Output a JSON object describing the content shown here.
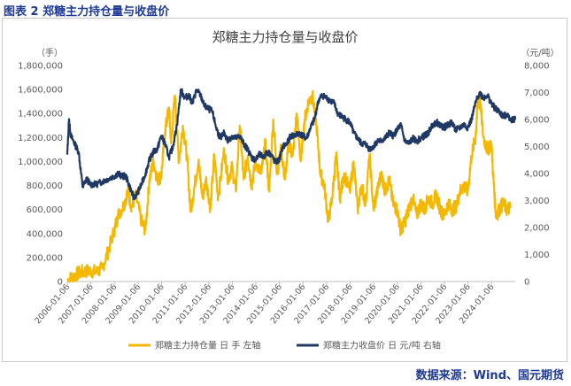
{
  "figure_label": "图表 2  郑糖主力持仓量与收盘价",
  "source_text": "数据来源：Wind、国元期货",
  "colors": {
    "volume": "#f5b800",
    "price": "#1f3864",
    "axis": "#bfbfbf"
  },
  "chart_data": {
    "type": "line",
    "title": "郑糖主力持仓量与收盘价",
    "left_unit": "（手）",
    "right_unit": "（元/吨）",
    "y_left": {
      "min": 0,
      "max": 1800000,
      "ticks": [
        "0",
        "200,000",
        "400,000",
        "600,000",
        "800,000",
        "1,000,000",
        "1,200,000",
        "1,400,000",
        "1,600,000",
        "1,800,000"
      ]
    },
    "y_right": {
      "min": 0,
      "max": 8000,
      "ticks": [
        "0",
        "1,000",
        "2,000",
        "3,000",
        "4,000",
        "5,000",
        "6,000",
        "7,000",
        "8,000"
      ]
    },
    "x_range": [
      "2006-01-06",
      "2025-01-06"
    ],
    "x_ticks": [
      "2006-01-06",
      "2007-01-06",
      "2008-01-06",
      "2009-01-06",
      "2010-01-06",
      "2011-01-06",
      "2012-01-06",
      "2013-01-06",
      "2014-01-06",
      "2015-01-06",
      "2016-01-06",
      "2017-01-06",
      "2018-01-06",
      "2019-01-06",
      "2020-01-06",
      "2021-01-06",
      "2022-01-06",
      "2023-01-06",
      "2024-01-06"
    ],
    "legend_position": "bottom",
    "series": [
      {
        "name": "郑糖主力持仓量 日 手  左轴",
        "axis": "left",
        "points": [
          [
            "2006-01-06",
            10000
          ],
          [
            "2006-04-01",
            40000
          ],
          [
            "2006-07-01",
            70000
          ],
          [
            "2006-10-01",
            85000
          ],
          [
            "2007-01-01",
            90000
          ],
          [
            "2007-04-01",
            80000
          ],
          [
            "2007-07-01",
            110000
          ],
          [
            "2007-10-01",
            250000
          ],
          [
            "2008-01-01",
            420000
          ],
          [
            "2008-03-01",
            550000
          ],
          [
            "2008-06-01",
            640000
          ],
          [
            "2008-08-01",
            750000
          ],
          [
            "2008-10-01",
            620000
          ],
          [
            "2008-12-01",
            720000
          ],
          [
            "2009-03-01",
            500000
          ],
          [
            "2009-05-01",
            430000
          ],
          [
            "2009-07-01",
            850000
          ],
          [
            "2009-09-01",
            1000000
          ],
          [
            "2009-11-01",
            850000
          ],
          [
            "2010-01-01",
            880000
          ],
          [
            "2010-03-01",
            1250000
          ],
          [
            "2010-05-01",
            1450000
          ],
          [
            "2010-06-01",
            1150000
          ],
          [
            "2010-08-01",
            1550000
          ],
          [
            "2010-10-01",
            1000000
          ],
          [
            "2010-12-01",
            1300000
          ],
          [
            "2011-02-01",
            1050000
          ],
          [
            "2011-04-01",
            580000
          ],
          [
            "2011-06-01",
            800000
          ],
          [
            "2011-08-01",
            1000000
          ],
          [
            "2011-10-01",
            700000
          ],
          [
            "2011-12-01",
            850000
          ],
          [
            "2012-02-01",
            600000
          ],
          [
            "2012-04-01",
            1050000
          ],
          [
            "2012-06-01",
            700000
          ],
          [
            "2012-09-01",
            1100000
          ],
          [
            "2012-11-01",
            850000
          ],
          [
            "2013-01-01",
            950000
          ],
          [
            "2013-03-01",
            750000
          ],
          [
            "2013-05-01",
            1300000
          ],
          [
            "2013-07-01",
            850000
          ],
          [
            "2013-09-01",
            1050000
          ],
          [
            "2013-11-01",
            800000
          ],
          [
            "2014-01-01",
            1000000
          ],
          [
            "2014-04-01",
            900000
          ],
          [
            "2014-06-01",
            1150000
          ],
          [
            "2014-08-01",
            750000
          ],
          [
            "2014-10-01",
            1350000
          ],
          [
            "2014-12-01",
            900000
          ],
          [
            "2015-02-01",
            1100000
          ],
          [
            "2015-04-01",
            850000
          ],
          [
            "2015-06-01",
            1150000
          ],
          [
            "2015-08-01",
            1050000
          ],
          [
            "2015-10-01",
            1400000
          ],
          [
            "2015-12-01",
            1000000
          ],
          [
            "2016-02-01",
            1350000
          ],
          [
            "2016-04-01",
            1500000
          ],
          [
            "2016-06-01",
            1550000
          ],
          [
            "2016-08-01",
            1300000
          ],
          [
            "2016-10-01",
            900000
          ],
          [
            "2016-12-01",
            800000
          ],
          [
            "2017-02-01",
            500000
          ],
          [
            "2017-04-01",
            700000
          ],
          [
            "2017-06-01",
            1050000
          ],
          [
            "2017-08-01",
            700000
          ],
          [
            "2017-10-01",
            900000
          ],
          [
            "2018-01-01",
            750000
          ],
          [
            "2018-03-01",
            1000000
          ],
          [
            "2018-05-01",
            600000
          ],
          [
            "2018-07-01",
            800000
          ],
          [
            "2018-09-01",
            650000
          ],
          [
            "2018-11-01",
            1050000
          ],
          [
            "2019-01-01",
            600000
          ],
          [
            "2019-03-01",
            750000
          ],
          [
            "2019-05-01",
            900000
          ],
          [
            "2019-07-01",
            750000
          ],
          [
            "2019-09-01",
            850000
          ],
          [
            "2019-11-01",
            650000
          ],
          [
            "2020-01-01",
            600000
          ],
          [
            "2020-03-01",
            420000
          ],
          [
            "2020-05-01",
            500000
          ],
          [
            "2020-07-01",
            600000
          ],
          [
            "2020-09-01",
            700000
          ],
          [
            "2020-11-01",
            550000
          ],
          [
            "2021-01-01",
            650000
          ],
          [
            "2021-03-01",
            600000
          ],
          [
            "2021-05-01",
            700000
          ],
          [
            "2021-07-01",
            650000
          ],
          [
            "2021-09-01",
            720000
          ],
          [
            "2021-11-01",
            600000
          ],
          [
            "2022-01-01",
            550000
          ],
          [
            "2022-03-01",
            650000
          ],
          [
            "2022-05-01",
            600000
          ],
          [
            "2022-07-01",
            620000
          ],
          [
            "2022-09-01",
            750000
          ],
          [
            "2022-11-01",
            800000
          ],
          [
            "2023-01-01",
            750000
          ],
          [
            "2023-03-01",
            1050000
          ],
          [
            "2023-05-01",
            1200000
          ],
          [
            "2023-06-01",
            1450000
          ],
          [
            "2023-07-01",
            1550000
          ],
          [
            "2023-09-01",
            1200000
          ],
          [
            "2023-11-01",
            1100000
          ],
          [
            "2024-01-01",
            1150000
          ],
          [
            "2024-02-15",
            750000
          ],
          [
            "2024-03-15",
            550000
          ],
          [
            "2024-05-01",
            600000
          ],
          [
            "2024-07-01",
            650000
          ],
          [
            "2024-09-01",
            600000
          ],
          [
            "2024-11-01",
            620000
          ]
        ]
      },
      {
        "name": "郑糖主力收盘价 日 元/吨  右轴",
        "axis": "right",
        "points": [
          [
            "2006-01-06",
            4700
          ],
          [
            "2006-02-01",
            6000
          ],
          [
            "2006-03-01",
            5400
          ],
          [
            "2006-05-01",
            5100
          ],
          [
            "2006-07-01",
            4800
          ],
          [
            "2006-09-01",
            3500
          ],
          [
            "2006-11-01",
            3800
          ],
          [
            "2007-01-01",
            3600
          ],
          [
            "2007-04-01",
            3600
          ],
          [
            "2007-07-01",
            3700
          ],
          [
            "2007-10-01",
            3800
          ],
          [
            "2008-01-01",
            3900
          ],
          [
            "2008-03-01",
            4000
          ],
          [
            "2008-05-01",
            3900
          ],
          [
            "2008-07-01",
            3900
          ],
          [
            "2008-09-01",
            3500
          ],
          [
            "2008-11-01",
            3100
          ],
          [
            "2009-01-01",
            3300
          ],
          [
            "2009-03-01",
            3600
          ],
          [
            "2009-05-01",
            4000
          ],
          [
            "2009-07-01",
            4500
          ],
          [
            "2009-09-01",
            4800
          ],
          [
            "2009-11-01",
            4900
          ],
          [
            "2010-01-01",
            5400
          ],
          [
            "2010-03-01",
            5100
          ],
          [
            "2010-05-01",
            4600
          ],
          [
            "2010-07-01",
            5000
          ],
          [
            "2010-09-01",
            5800
          ],
          [
            "2010-11-01",
            7100
          ],
          [
            "2011-01-01",
            6800
          ],
          [
            "2011-03-01",
            6900
          ],
          [
            "2011-05-01",
            6600
          ],
          [
            "2011-07-01",
            7100
          ],
          [
            "2011-09-01",
            6900
          ],
          [
            "2011-11-01",
            6500
          ],
          [
            "2012-01-01",
            6400
          ],
          [
            "2012-03-01",
            6300
          ],
          [
            "2012-05-01",
            5700
          ],
          [
            "2012-07-01",
            5300
          ],
          [
            "2012-09-01",
            5500
          ],
          [
            "2012-11-01",
            5200
          ],
          [
            "2013-01-01",
            5400
          ],
          [
            "2013-03-01",
            5300
          ],
          [
            "2013-05-01",
            5400
          ],
          [
            "2013-07-01",
            5100
          ],
          [
            "2013-09-01",
            4900
          ],
          [
            "2013-11-01",
            4600
          ],
          [
            "2014-01-01",
            4500
          ],
          [
            "2014-03-01",
            4700
          ],
          [
            "2014-05-01",
            4600
          ],
          [
            "2014-07-01",
            4800
          ],
          [
            "2014-09-01",
            4700
          ],
          [
            "2014-11-01",
            4400
          ],
          [
            "2015-01-01",
            4500
          ],
          [
            "2015-03-01",
            5000
          ],
          [
            "2015-05-01",
            5100
          ],
          [
            "2015-07-01",
            5400
          ],
          [
            "2015-09-01",
            5400
          ],
          [
            "2015-11-01",
            5500
          ],
          [
            "2016-01-01",
            5400
          ],
          [
            "2016-03-01",
            5300
          ],
          [
            "2016-05-01",
            5700
          ],
          [
            "2016-07-01",
            6000
          ],
          [
            "2016-09-01",
            6700
          ],
          [
            "2016-11-01",
            6900
          ],
          [
            "2017-01-01",
            6800
          ],
          [
            "2017-03-01",
            6700
          ],
          [
            "2017-05-01",
            6600
          ],
          [
            "2017-07-01",
            6200
          ],
          [
            "2017-09-01",
            6100
          ],
          [
            "2017-11-01",
            6000
          ],
          [
            "2018-01-01",
            5900
          ],
          [
            "2018-03-01",
            5500
          ],
          [
            "2018-05-01",
            5300
          ],
          [
            "2018-07-01",
            5100
          ],
          [
            "2018-09-01",
            5100
          ],
          [
            "2018-11-01",
            4900
          ],
          [
            "2019-01-01",
            5000
          ],
          [
            "2019-03-01",
            5200
          ],
          [
            "2019-05-01",
            5200
          ],
          [
            "2019-07-01",
            5300
          ],
          [
            "2019-09-01",
            5500
          ],
          [
            "2019-11-01",
            5400
          ],
          [
            "2020-01-01",
            5600
          ],
          [
            "2020-03-01",
            5800
          ],
          [
            "2020-05-01",
            5200
          ],
          [
            "2020-07-01",
            5100
          ],
          [
            "2020-09-01",
            5300
          ],
          [
            "2020-11-01",
            5200
          ],
          [
            "2021-01-01",
            5300
          ],
          [
            "2021-03-01",
            5400
          ],
          [
            "2021-05-01",
            5500
          ],
          [
            "2021-07-01",
            5800
          ],
          [
            "2021-09-01",
            5900
          ],
          [
            "2021-11-01",
            5800
          ],
          [
            "2022-01-01",
            5700
          ],
          [
            "2022-03-01",
            5800
          ],
          [
            "2022-05-01",
            5900
          ],
          [
            "2022-07-01",
            5600
          ],
          [
            "2022-09-01",
            5700
          ],
          [
            "2022-11-01",
            5800
          ],
          [
            "2023-01-01",
            5700
          ],
          [
            "2023-03-01",
            6000
          ],
          [
            "2023-05-01",
            6600
          ],
          [
            "2023-07-01",
            7000
          ],
          [
            "2023-09-01",
            6800
          ],
          [
            "2023-11-01",
            6900
          ],
          [
            "2024-01-01",
            6600
          ],
          [
            "2024-03-01",
            6400
          ],
          [
            "2024-05-01",
            6300
          ],
          [
            "2024-07-01",
            6100
          ],
          [
            "2024-09-01",
            6200
          ],
          [
            "2024-11-01",
            6000
          ],
          [
            "2025-01-06",
            6000
          ]
        ]
      }
    ]
  }
}
